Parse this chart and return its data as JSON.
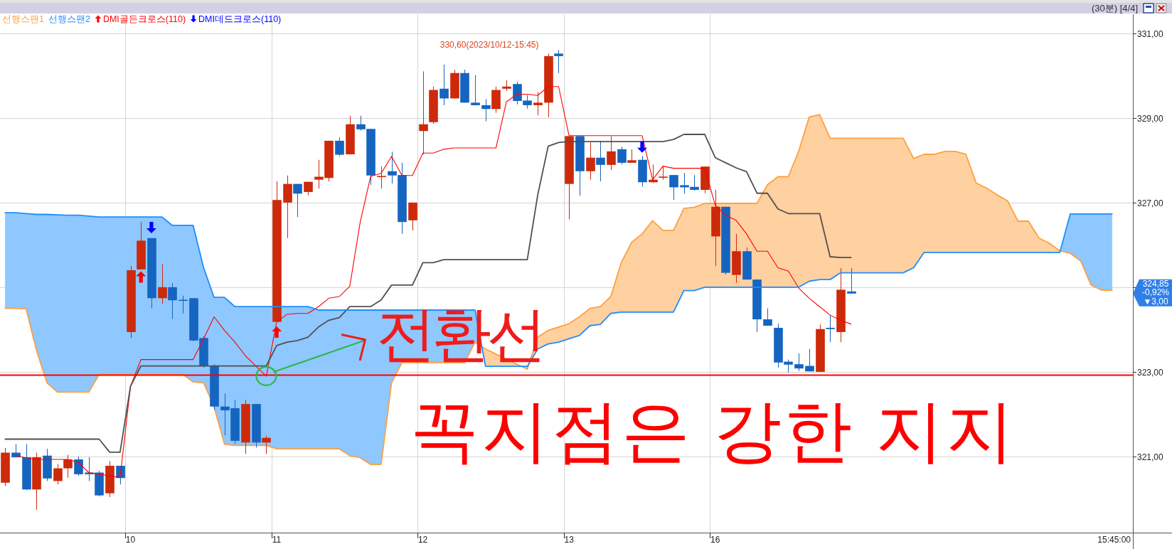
{
  "chart_data": {
    "type": "candlestick",
    "categories": [
      null,
      null,
      null,
      null,
      null,
      null,
      null,
      null,
      null,
      null,
      null,
      null,
      "10",
      null,
      null,
      null,
      null,
      null,
      null,
      null,
      null,
      null,
      null,
      null,
      null,
      null,
      "11",
      null,
      null,
      null,
      null,
      null,
      null,
      null,
      null,
      null,
      null,
      null,
      null,
      null,
      "12",
      null,
      null,
      null,
      null,
      null,
      null,
      null,
      null,
      null,
      null,
      null,
      null,
      null,
      "13",
      null,
      null,
      null,
      null,
      null,
      null,
      null,
      null,
      null,
      null,
      null,
      null,
      null,
      "16",
      null,
      null,
      null,
      null,
      null,
      null,
      null,
      null,
      null,
      null,
      null,
      null,
      null,
      null,
      null,
      null,
      null,
      null,
      null,
      null,
      null,
      null,
      null,
      null,
      null,
      null,
      null,
      null,
      null,
      null,
      null,
      null,
      null,
      null,
      null,
      null,
      null,
      null
    ],
    "ohlc": [
      [
        320.38,
        321.2,
        320.3,
        321.09
      ],
      [
        321.09,
        321.29,
        320.98,
        320.98
      ],
      [
        320.98,
        321.29,
        320.21,
        320.22
      ],
      [
        320.22,
        321.09,
        319.74,
        320.98
      ],
      [
        321.02,
        321.18,
        320.42,
        320.48
      ],
      [
        320.42,
        320.82,
        320.34,
        320.72
      ],
      [
        320.72,
        321.04,
        320.5,
        320.93
      ],
      [
        320.93,
        321.0,
        320.54,
        320.58
      ],
      [
        320.62,
        320.98,
        320.42,
        320.58
      ],
      [
        320.62,
        320.66,
        320.06,
        320.08
      ],
      [
        320.13,
        320.89,
        320.04,
        320.78
      ],
      [
        320.78,
        320.78,
        320.34,
        320.49
      ],
      [
        323.94,
        325.5,
        323.8,
        325.4
      ],
      [
        325.42,
        326.54,
        325.42,
        326.1
      ],
      [
        326.16,
        326.16,
        324.5,
        324.74
      ],
      [
        324.74,
        325.54,
        324.61,
        325.0
      ],
      [
        325.0,
        325.1,
        324.25,
        324.69
      ],
      [
        324.69,
        324.8,
        324.38,
        324.69
      ],
      [
        324.74,
        324.74,
        323.72,
        323.74
      ],
      [
        323.8,
        323.84,
        323.1,
        323.14
      ],
      [
        323.14,
        323.18,
        322.1,
        322.18
      ],
      [
        322.18,
        322.49,
        321.5,
        322.09
      ],
      [
        322.14,
        322.34,
        321.3,
        321.37
      ],
      [
        321.33,
        322.34,
        321.06,
        322.24
      ],
      [
        322.24,
        322.24,
        321.21,
        321.33
      ],
      [
        321.33,
        321.49,
        321.06,
        321.44
      ],
      [
        324.18,
        327.5,
        324.18,
        327.06
      ],
      [
        327.0,
        327.64,
        326.16,
        327.44
      ],
      [
        327.44,
        327.44,
        326.66,
        327.21
      ],
      [
        327.25,
        327.49,
        327.17,
        327.49
      ],
      [
        327.54,
        328.01,
        327.33,
        327.61
      ],
      [
        327.58,
        328.46,
        327.5,
        328.46
      ],
      [
        328.46,
        328.54,
        328.1,
        328.13
      ],
      [
        328.14,
        329.05,
        328.14,
        328.85
      ],
      [
        328.85,
        329.05,
        328.7,
        328.73
      ],
      [
        328.74,
        328.74,
        327.42,
        327.64
      ],
      [
        327.61,
        327.85,
        327.33,
        327.62
      ],
      [
        327.74,
        328.2,
        327.45,
        327.64
      ],
      [
        327.65,
        327.94,
        326.26,
        326.54
      ],
      [
        326.58,
        327.0,
        326.34,
        327.0
      ],
      [
        328.69,
        330.1,
        328.14,
        328.85
      ],
      [
        328.9,
        329.74,
        328.86,
        329.66
      ],
      [
        329.69,
        330.26,
        329.3,
        329.46
      ],
      [
        329.46,
        330.14,
        329.46,
        330.06
      ],
      [
        330.06,
        330.14,
        329.36,
        329.36
      ],
      [
        329.36,
        330.01,
        329.3,
        329.3
      ],
      [
        329.3,
        329.44,
        328.92,
        329.21
      ],
      [
        329.21,
        329.74,
        329.12,
        329.66
      ],
      [
        329.69,
        329.89,
        329.64,
        329.74
      ],
      [
        329.8,
        329.86,
        329.32,
        329.4
      ],
      [
        329.41,
        329.54,
        329.22,
        329.3
      ],
      [
        329.3,
        329.61,
        329.06,
        329.36
      ],
      [
        329.36,
        330.52,
        329.02,
        330.46
      ],
      [
        330.52,
        330.6,
        330.06,
        330.46
      ],
      [
        327.44,
        328.57,
        326.6,
        328.57
      ],
      [
        328.57,
        328.57,
        327.16,
        327.74
      ],
      [
        327.74,
        328.42,
        327.54,
        328.06
      ],
      [
        328.06,
        328.46,
        327.5,
        327.89
      ],
      [
        327.89,
        328.57,
        327.77,
        328.21
      ],
      [
        328.26,
        328.32,
        327.9,
        327.94
      ],
      [
        327.94,
        328.26,
        327.94,
        328.0
      ],
      [
        328.01,
        328.1,
        327.37,
        327.48
      ],
      [
        327.48,
        327.9,
        327.46,
        327.54
      ],
      [
        327.6,
        327.86,
        327.54,
        327.6
      ],
      [
        327.65,
        327.65,
        327.06,
        327.36
      ],
      [
        327.41,
        327.7,
        327.21,
        327.36
      ],
      [
        327.37,
        327.65,
        327.28,
        327.3
      ],
      [
        327.3,
        327.85,
        327.22,
        327.85
      ],
      [
        326.2,
        327.3,
        325.5,
        326.9
      ],
      [
        326.9,
        326.9,
        325.3,
        325.34
      ],
      [
        325.29,
        326.26,
        325.1,
        325.85
      ],
      [
        325.85,
        325.94,
        325.18,
        325.18
      ],
      [
        325.18,
        325.18,
        323.94,
        324.24
      ],
      [
        324.24,
        324.5,
        324.09,
        324.09
      ],
      [
        324.04,
        324.14,
        323.1,
        323.22
      ],
      [
        323.24,
        323.29,
        322.98,
        323.17
      ],
      [
        323.18,
        323.44,
        323.02,
        323.08
      ],
      [
        323.14,
        323.54,
        323.01,
        323.01
      ],
      [
        323.0,
        324.12,
        323.0,
        324.01
      ],
      [
        324.04,
        324.34,
        323.7,
        324.01
      ],
      [
        323.94,
        325.45,
        323.7,
        324.94
      ],
      [
        324.9,
        325.45,
        324.85,
        324.85
      ],
      null,
      null,
      null,
      null,
      null,
      null,
      null,
      null,
      null,
      null,
      null,
      null,
      null,
      null,
      null,
      null,
      null,
      null,
      null,
      null,
      null,
      null,
      null,
      null,
      null
    ],
    "colors": [
      "#cc2a0a",
      "#1565c0",
      "#1565c0",
      "#cc2a0a",
      "#1565c0",
      "#cc2a0a",
      "#cc2a0a",
      "#1565c0",
      "#1565c0",
      "#1565c0",
      "#cc2a0a",
      "#1565c0",
      "#cc2a0a",
      "#cc2a0a",
      "#1565c0",
      "#cc2a0a",
      "#1565c0",
      "#1565c0",
      "#1565c0",
      "#1565c0",
      "#1565c0",
      "#1565c0",
      "#1565c0",
      "#cc2a0a",
      "#1565c0",
      "#cc2a0a",
      "#cc2a0a",
      "#cc2a0a",
      "#1565c0",
      "#cc2a0a",
      "#cc2a0a",
      "#cc2a0a",
      "#1565c0",
      "#cc2a0a",
      "#1565c0",
      "#1565c0",
      "#cc2a0a",
      "#1565c0",
      "#1565c0",
      "#cc2a0a",
      "#cc2a0a",
      "#cc2a0a",
      "#1565c0",
      "#cc2a0a",
      "#1565c0",
      "#1565c0",
      "#1565c0",
      "#cc2a0a",
      "#cc2a0a",
      "#1565c0",
      "#1565c0",
      "#cc2a0a",
      "#cc2a0a",
      "#1565c0",
      "#cc2a0a",
      "#1565c0",
      "#cc2a0a",
      "#1565c0",
      "#cc2a0a",
      "#1565c0",
      "#cc2a0a",
      "#1565c0",
      "#cc2a0a",
      "#cc2a0a",
      "#1565c0",
      "#1565c0",
      "#1565c0",
      "#cc2a0a",
      "#cc2a0a",
      "#1565c0",
      "#cc2a0a",
      "#1565c0",
      "#1565c0",
      "#1565c0",
      "#1565c0",
      "#1565c0",
      "#1565c0",
      "#1565c0",
      "#cc2a0a",
      "#1565c0",
      "#cc2a0a",
      "#1565c0",
      null,
      null,
      null,
      null,
      null,
      null,
      null,
      null,
      null,
      null,
      null,
      null,
      null,
      null,
      null,
      null,
      null,
      null,
      null,
      null,
      null,
      null,
      null,
      null,
      null
    ],
    "series": [
      {
        "type": "line",
        "color": "#ff0000",
        "values": [
          null,
          321.02,
          320.97,
          320.93,
          320.93,
          320.93,
          320.93,
          320.86,
          320.62,
          320.58,
          320.54,
          320.5,
          322.66,
          323.29,
          323.29,
          323.29,
          323.29,
          323.29,
          323.29,
          323.78,
          324.3,
          323.98,
          323.7,
          323.38,
          323.14,
          322.9,
          324.18,
          324.36,
          324.38,
          324.38,
          324.54,
          324.74,
          324.78,
          325.02,
          326.54,
          327.62,
          327.69,
          328.09,
          327.64,
          327.64,
          328.17,
          328.17,
          328.26,
          328.29,
          328.29,
          328.29,
          328.29,
          328.29,
          329.38,
          329.56,
          329.56,
          329.53,
          329.74,
          329.74,
          328.58,
          328.58,
          328.58,
          328.58,
          328.58,
          328.58,
          328.58,
          328.58,
          327.54,
          327.86,
          327.81,
          327.81,
          327.81,
          327.81,
          326.94,
          326.7,
          326.58,
          326.26,
          325.85,
          325.85,
          325.46,
          325.38,
          324.98,
          324.74,
          324.54,
          324.34,
          324.22,
          324.13,
          null,
          null,
          null,
          null,
          null,
          null,
          null,
          null,
          null,
          null,
          null,
          null,
          null,
          null,
          null,
          null,
          null,
          null,
          null,
          null,
          null,
          null,
          null,
          null,
          null
        ]
      },
      {
        "type": "line",
        "color": "#505050",
        "values": [
          321.41,
          321.41,
          321.41,
          321.41,
          321.41,
          321.41,
          321.41,
          321.41,
          321.41,
          321.41,
          321.1,
          321.1,
          322.66,
          323.14,
          323.14,
          323.14,
          323.14,
          323.14,
          323.14,
          323.14,
          323.14,
          323.14,
          323.14,
          323.14,
          323.14,
          323.14,
          323.62,
          323.7,
          323.74,
          323.82,
          324.06,
          324.22,
          324.28,
          324.54,
          324.54,
          324.54,
          324.7,
          325.05,
          325.05,
          325.05,
          325.58,
          325.58,
          325.65,
          325.65,
          325.65,
          325.65,
          325.65,
          325.65,
          325.65,
          325.65,
          325.65,
          327.18,
          328.33,
          328.42,
          328.44,
          328.44,
          328.44,
          328.44,
          328.44,
          328.44,
          328.44,
          328.44,
          328.44,
          328.44,
          328.49,
          328.61,
          328.61,
          328.61,
          328.06,
          327.94,
          327.82,
          327.73,
          327.22,
          327.22,
          326.85,
          326.74,
          326.74,
          326.74,
          326.74,
          325.72,
          325.7,
          325.7,
          null,
          null,
          null,
          null,
          null,
          null,
          null,
          null,
          null,
          null,
          null,
          null,
          null,
          null,
          null,
          null,
          null,
          null,
          null,
          null,
          null,
          null,
          null,
          null,
          null
        ]
      },
      {
        "name": "선행스팬1",
        "type": "line",
        "color": "#ffa040",
        "values": [
          324.5,
          324.5,
          324.49,
          323.5,
          322.74,
          322.52,
          322.52,
          322.52,
          322.52,
          322.94,
          322.94,
          322.94,
          322.94,
          322.94,
          322.94,
          322.94,
          322.94,
          322.94,
          322.76,
          322.74,
          322.18,
          321.29,
          321.26,
          321.26,
          321.26,
          321.26,
          321.18,
          321.18,
          321.18,
          321.18,
          321.18,
          321.18,
          321.18,
          321.02,
          320.97,
          320.81,
          320.81,
          322.74,
          323.22,
          323.22,
          323.22,
          323.22,
          323.22,
          323.22,
          323.22,
          323.7,
          323.54,
          323.42,
          323.3,
          323.18,
          323.06,
          323.82,
          323.98,
          324.06,
          324.14,
          324.3,
          324.5,
          324.54,
          324.78,
          325.58,
          326.06,
          326.26,
          326.57,
          326.34,
          326.34,
          326.86,
          326.89,
          326.98,
          326.98,
          326.98,
          326.98,
          326.98,
          326.98,
          327.42,
          327.61,
          327.61,
          328.22,
          329.02,
          329.08,
          328.52,
          328.52,
          328.52,
          328.52,
          328.52,
          328.52,
          328.52,
          328.52,
          328.04,
          328.14,
          328.14,
          328.21,
          328.21,
          328.14,
          327.46,
          327.34,
          327.18,
          327.04,
          326.56,
          326.56,
          326.16,
          326.04,
          325.86,
          325.8,
          325.62,
          325.05,
          324.93,
          324.93
        ]
      },
      {
        "name": "선행스팬2",
        "type": "line",
        "color": "#1e8fff",
        "values": [
          326.76,
          326.76,
          326.74,
          326.72,
          326.72,
          326.71,
          326.7,
          326.7,
          326.68,
          326.66,
          326.66,
          326.66,
          326.66,
          326.66,
          326.66,
          326.66,
          326.46,
          326.46,
          326.46,
          325.46,
          324.76,
          324.76,
          324.54,
          324.54,
          324.54,
          324.54,
          324.54,
          324.54,
          324.54,
          324.54,
          324.46,
          324.46,
          324.46,
          324.46,
          324.46,
          324.46,
          324.46,
          324.46,
          324.46,
          324.46,
          324.46,
          324.46,
          324.46,
          324.46,
          324.46,
          324.46,
          323.13,
          323.13,
          323.13,
          323.13,
          323.13,
          323.54,
          323.66,
          323.7,
          323.78,
          323.86,
          324.09,
          324.12,
          324.38,
          324.41,
          324.41,
          324.41,
          324.41,
          324.41,
          324.41,
          324.92,
          324.92,
          325.0,
          325.0,
          325.0,
          325.0,
          325.0,
          325.0,
          325.0,
          325.0,
          325.0,
          325.0,
          325.14,
          325.18,
          325.18,
          325.34,
          325.34,
          325.34,
          325.34,
          325.34,
          325.34,
          325.34,
          325.46,
          325.82,
          325.82,
          325.82,
          325.82,
          325.82,
          325.82,
          325.82,
          325.82,
          325.82,
          325.82,
          325.82,
          325.82,
          325.82,
          325.82,
          326.73,
          326.73,
          326.73,
          326.73,
          326.73
        ]
      },
      {
        "name": "DMI골든크로스(110)",
        "type": "scatter",
        "marker": "triangle",
        "color": "#ff0000",
        "values": [
          null,
          null,
          null,
          null,
          null,
          null,
          null,
          null,
          null,
          null,
          null,
          null,
          null,
          325.24,
          null,
          null,
          null,
          null,
          null,
          null,
          null,
          null,
          null,
          null,
          null,
          null,
          323.94,
          null,
          null,
          null,
          null,
          null,
          null,
          null,
          null,
          null,
          null,
          null,
          null,
          null,
          null,
          null,
          null,
          null,
          null,
          null,
          null,
          null,
          null,
          null,
          null,
          null,
          null,
          null,
          null,
          null,
          null,
          null,
          null,
          null,
          null,
          null,
          null,
          null,
          null,
          null,
          null,
          null,
          null,
          null,
          null,
          null,
          null,
          null,
          null,
          null,
          null,
          null,
          null,
          null,
          null,
          null,
          null,
          null,
          null,
          null,
          null,
          null,
          null,
          null,
          null,
          null,
          null,
          null,
          null,
          null,
          null,
          null,
          null,
          null,
          null,
          null,
          null,
          null,
          null,
          null,
          null
        ]
      },
      {
        "name": "DMI데드크로스(110)",
        "type": "scatter",
        "marker": "triangle",
        "color": "#0000ff",
        "values": [
          null,
          null,
          null,
          null,
          null,
          null,
          null,
          null,
          null,
          null,
          null,
          null,
          null,
          null,
          326.41,
          null,
          null,
          null,
          null,
          null,
          null,
          null,
          null,
          null,
          null,
          null,
          null,
          null,
          null,
          null,
          null,
          null,
          null,
          null,
          null,
          null,
          null,
          null,
          null,
          null,
          null,
          null,
          null,
          null,
          null,
          null,
          null,
          null,
          null,
          null,
          null,
          null,
          null,
          null,
          null,
          null,
          null,
          null,
          null,
          null,
          null,
          328.31,
          null,
          null,
          null,
          null,
          null,
          null,
          null,
          null,
          null,
          null,
          null,
          null,
          null,
          null,
          null,
          null,
          null,
          null,
          null,
          null,
          null,
          null,
          null,
          null,
          null,
          null,
          null,
          null,
          null,
          null,
          null,
          null,
          null,
          null,
          null,
          null,
          null,
          null,
          null,
          null,
          null,
          null,
          null,
          null,
          null
        ]
      }
    ],
    "ylim": [
      319.2,
      331.45
    ],
    "yticks": [
      {
        "value": 331,
        "label": "331,00"
      },
      {
        "value": 329,
        "label": "329,00"
      },
      {
        "value": 327,
        "label": "327,00"
      },
      {
        "value": 325,
        "label": null
      },
      {
        "value": 323,
        "label": "323,00"
      },
      {
        "value": 321,
        "label": "321,00"
      }
    ],
    "grid": true,
    "legend": "top left",
    "ref_lines": [
      {
        "axis": "y",
        "value": 322.92,
        "label": "꼭지점은 강한 지지",
        "color": "#ff0000"
      }
    ],
    "annotations": [
      "330,60(2023/10/12-15:45)",
      {
        "text": "전환선",
        "y": 322.9
      },
      "324,85\n-0,92%\n▼3,00",
      "15:45:00",
      "(30분) [4/4]"
    ]
  }
}
